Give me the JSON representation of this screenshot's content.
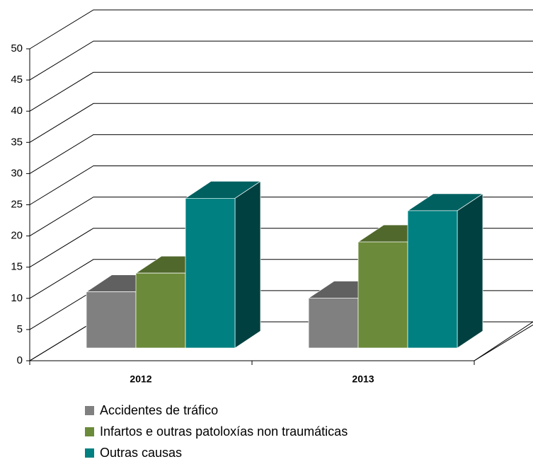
{
  "chart_data": {
    "type": "bar3d",
    "categories": [
      "2012",
      "2013"
    ],
    "series": [
      {
        "name": "Accidentes de tráfico",
        "color": "#808080",
        "values": [
          9,
          8
        ]
      },
      {
        "name": "Infartos e outras patoloxías non traumáticas",
        "color": "#6b8a3a",
        "values": [
          12,
          17
        ]
      },
      {
        "name": "Outras causas",
        "color": "#008080",
        "values": [
          24,
          22
        ]
      }
    ],
    "ylim": [
      0,
      50
    ],
    "yticks": [
      0,
      5,
      10,
      15,
      20,
      25,
      30,
      35,
      40,
      45,
      50
    ],
    "grid": true,
    "legend": "bottom"
  }
}
